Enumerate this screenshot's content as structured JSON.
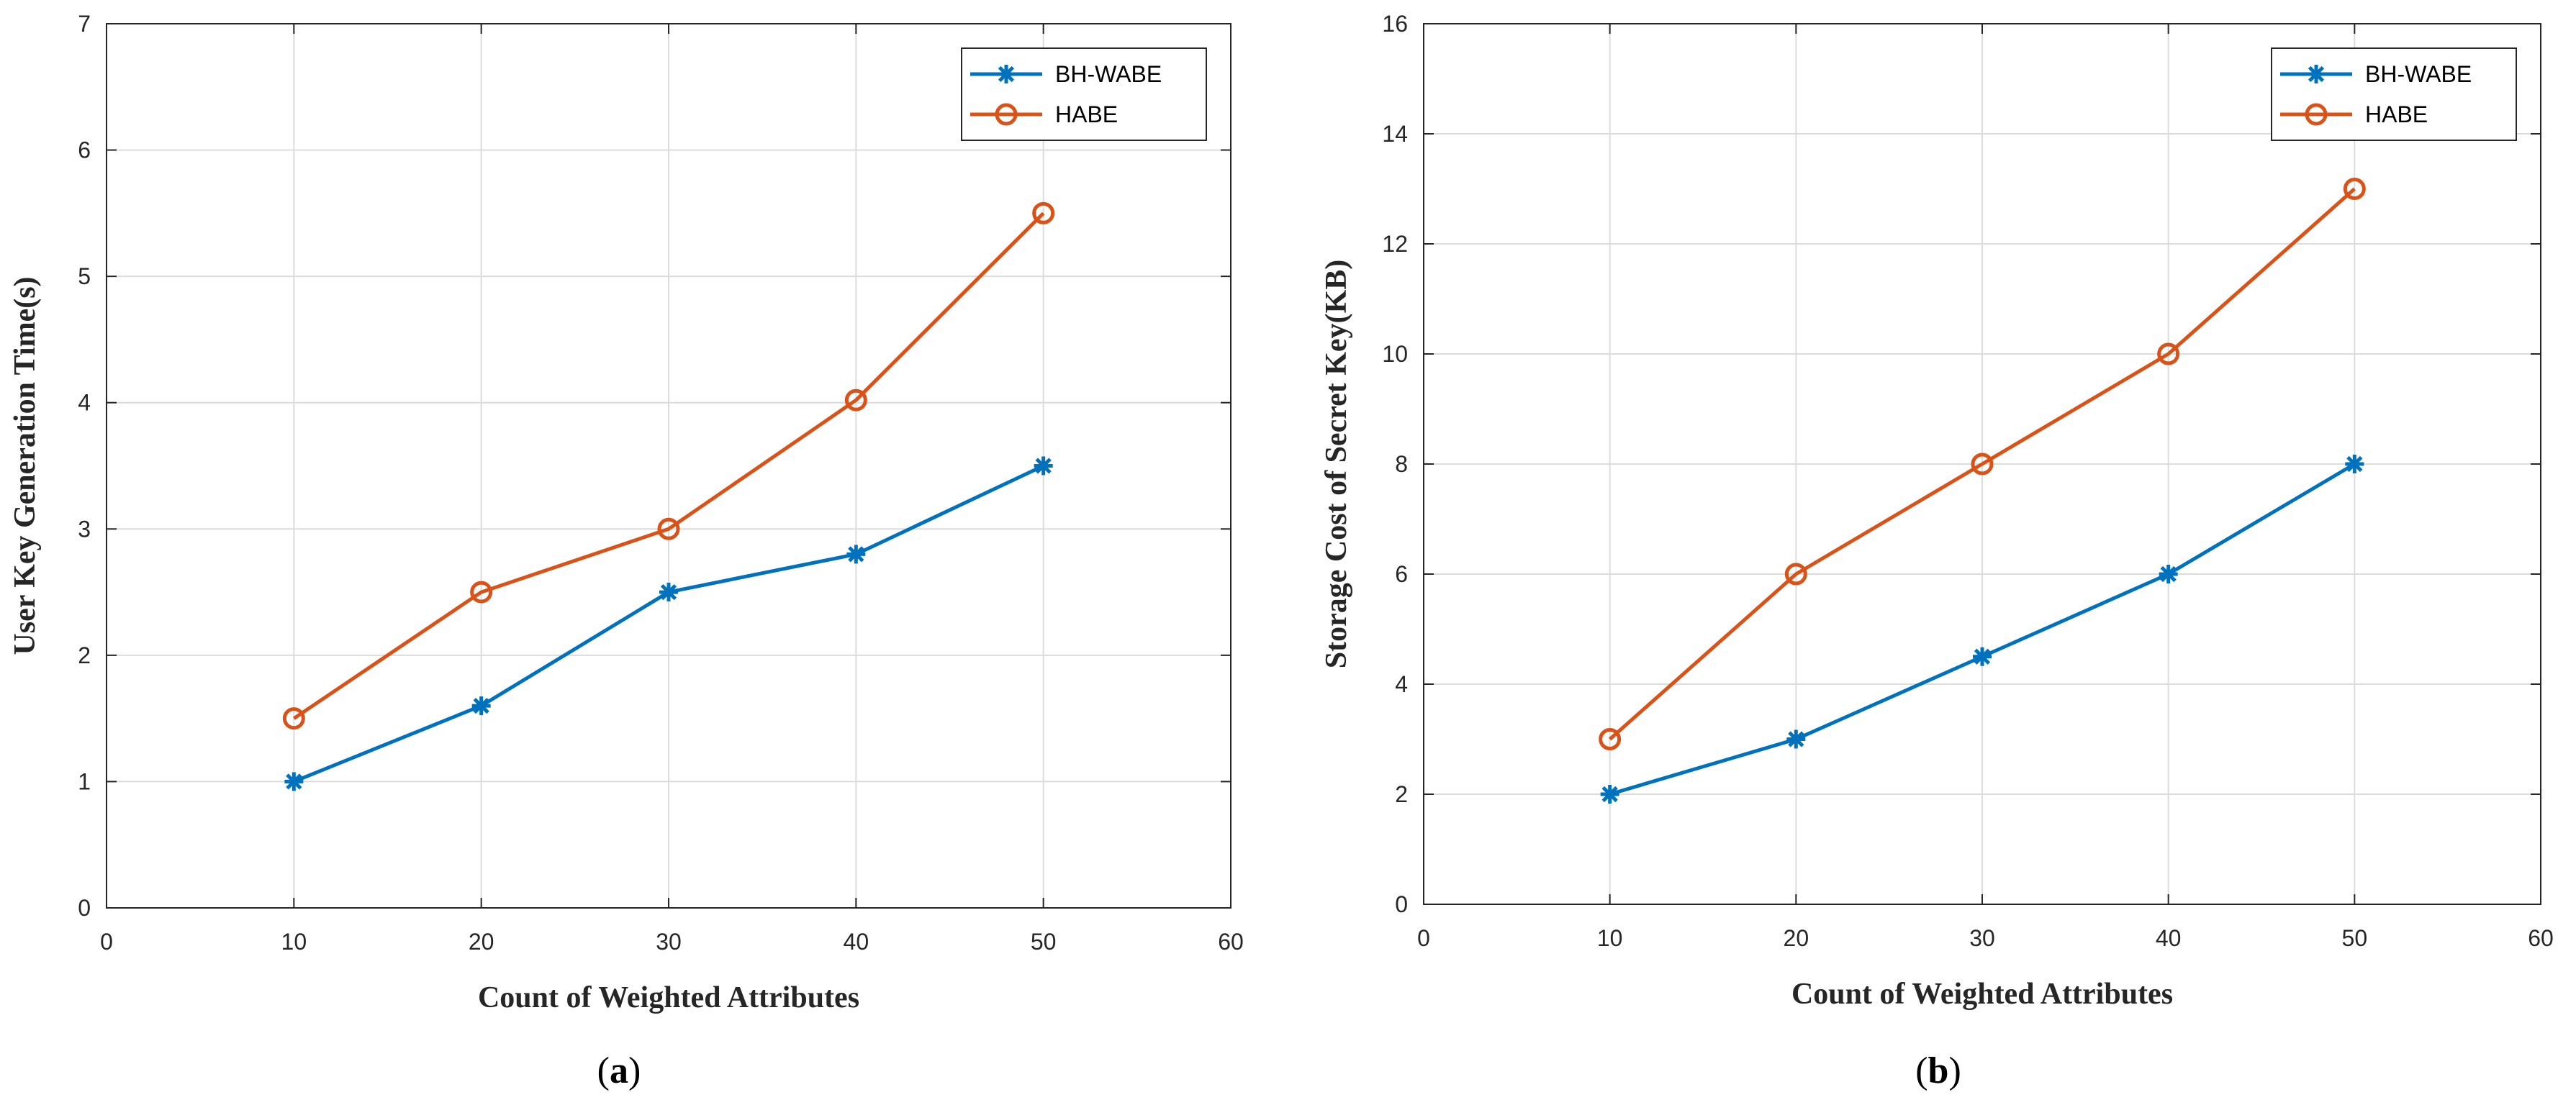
{
  "colors": {
    "bh_wabe": "#0072BD",
    "habe": "#D95319",
    "axis": "#262626",
    "grid": "#dcdcdc"
  },
  "chart_data": [
    {
      "type": "line",
      "caption": "a",
      "xlabel": "Count of Weighted Attributes",
      "ylabel": "User Key Generation Time(s)",
      "xlim": [
        0,
        60
      ],
      "ylim": [
        0,
        7
      ],
      "x_ticks": [
        "0",
        "10",
        "20",
        "30",
        "40",
        "50",
        "60"
      ],
      "y_ticks": [
        "0",
        "1",
        "2",
        "3",
        "4",
        "5",
        "6",
        "7"
      ],
      "grid": true,
      "legend_position": "top-right",
      "x": [
        10,
        20,
        30,
        40,
        50
      ],
      "series": [
        {
          "name": "BH-WABE",
          "marker": "asterisk",
          "values": [
            1.0,
            1.6,
            2.5,
            2.8,
            3.5
          ]
        },
        {
          "name": "HABE",
          "marker": "circle",
          "values": [
            1.5,
            2.5,
            3.0,
            4.02,
            5.5
          ]
        }
      ]
    },
    {
      "type": "line",
      "caption": "b",
      "xlabel": "Count of Weighted Attributes",
      "ylabel": "Storage Cost of Secret Key(KB)",
      "xlim": [
        0,
        60
      ],
      "ylim": [
        0,
        16
      ],
      "x_ticks": [
        "0",
        "10",
        "20",
        "30",
        "40",
        "50",
        "60"
      ],
      "y_ticks": [
        "0",
        "2",
        "4",
        "6",
        "8",
        "10",
        "12",
        "14",
        "16"
      ],
      "grid": true,
      "legend_position": "top-right",
      "x": [
        10,
        20,
        30,
        40,
        50
      ],
      "series": [
        {
          "name": "BH-WABE",
          "marker": "asterisk",
          "values": [
            2,
            3,
            4.5,
            6,
            8
          ]
        },
        {
          "name": "HABE",
          "marker": "circle",
          "values": [
            3,
            6,
            8,
            10,
            13
          ]
        }
      ]
    }
  ]
}
